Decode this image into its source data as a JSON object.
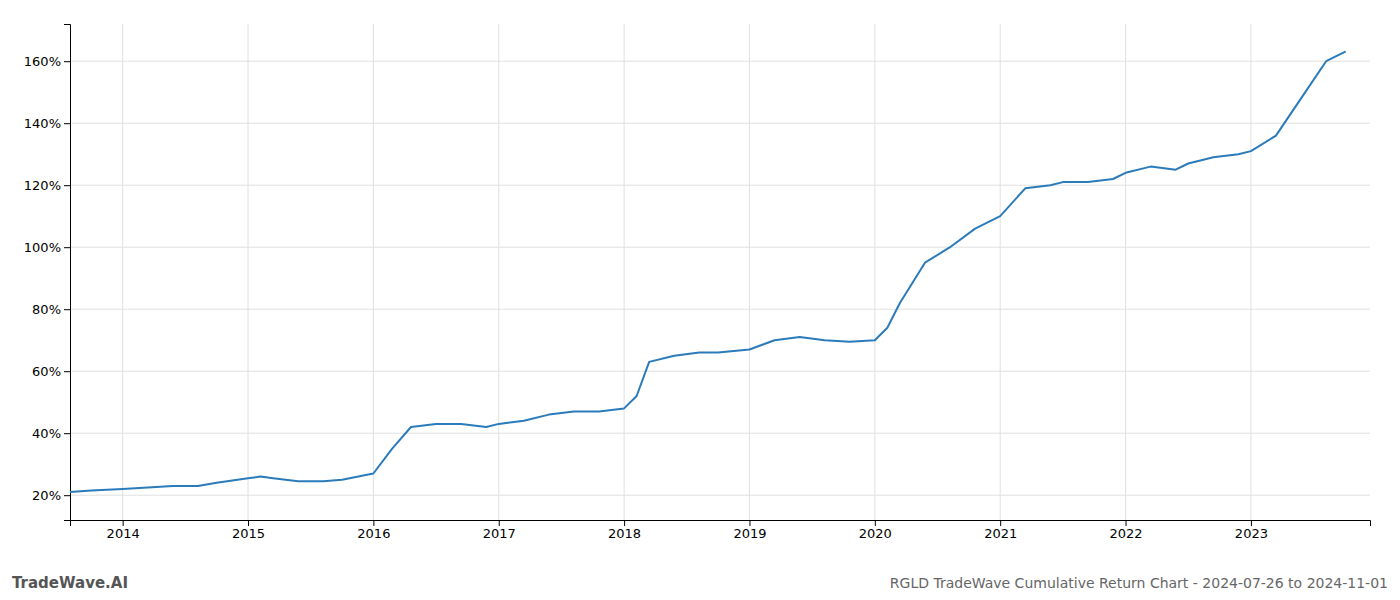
{
  "chart_data": {
    "type": "line",
    "title": "RGLD TradeWave Cumulative Return Chart - 2024-07-26 to 2024-11-01",
    "annotations": [
      "TradeWave.AI"
    ],
    "color": "#2b7bba",
    "grid": true,
    "xlim": [
      2013.58,
      2023.95
    ],
    "xticks": [
      2014,
      2015,
      2016,
      2017,
      2018,
      2019,
      2020,
      2021,
      2022,
      2023
    ],
    "ylim": [
      12,
      172
    ],
    "yticks": [
      {
        "value": 20,
        "label": "20%"
      },
      {
        "value": 40,
        "label": "40%"
      },
      {
        "value": 60,
        "label": "60%"
      },
      {
        "value": 80,
        "label": "80%"
      },
      {
        "value": 100,
        "label": "100%"
      },
      {
        "value": 120,
        "label": "120%"
      },
      {
        "value": 140,
        "label": "140%"
      },
      {
        "value": 160,
        "label": "160%"
      }
    ],
    "x": [
      2013.58,
      2013.75,
      2014.0,
      2014.2,
      2014.4,
      2014.6,
      2014.75,
      2015.0,
      2015.1,
      2015.2,
      2015.4,
      2015.6,
      2015.75,
      2016.0,
      2016.15,
      2016.3,
      2016.5,
      2016.7,
      2016.9,
      2017.0,
      2017.2,
      2017.4,
      2017.6,
      2017.8,
      2018.0,
      2018.1,
      2018.2,
      2018.4,
      2018.6,
      2018.75,
      2019.0,
      2019.2,
      2019.4,
      2019.6,
      2019.8,
      2020.0,
      2020.1,
      2020.2,
      2020.4,
      2020.6,
      2020.8,
      2021.0,
      2021.2,
      2021.4,
      2021.5,
      2021.7,
      2021.9,
      2022.0,
      2022.2,
      2022.4,
      2022.5,
      2022.7,
      2022.9,
      2023.0,
      2023.2,
      2023.4,
      2023.6,
      2023.75
    ],
    "values": [
      21,
      21.5,
      22,
      22.5,
      23,
      23,
      24,
      25.5,
      26,
      25.5,
      24.5,
      24.5,
      25,
      27,
      35,
      42,
      43,
      43,
      42,
      43,
      44,
      46,
      47,
      47,
      48,
      52,
      63,
      65,
      66,
      66,
      67,
      70,
      71,
      70,
      69.5,
      70,
      74,
      82,
      95,
      100,
      106,
      110,
      119,
      120,
      121,
      121,
      122,
      124,
      126,
      125,
      127,
      129,
      130,
      131,
      136,
      148,
      160,
      163
    ]
  }
}
